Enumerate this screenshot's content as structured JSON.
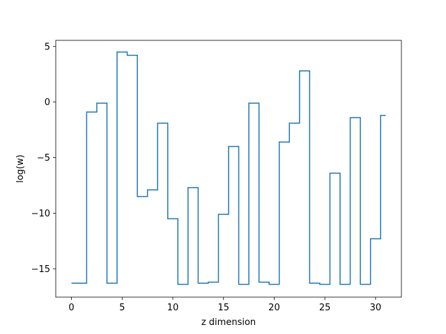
{
  "chart_data": {
    "type": "line",
    "drawstyle": "steps-mid",
    "title": "",
    "xlabel": "z dimension",
    "ylabel": "log(w)",
    "xlim": [
      -1.55,
      32.55
    ],
    "ylim": [
      -17.55,
      5.55
    ],
    "xticks": [
      0,
      5,
      10,
      15,
      20,
      25,
      30
    ],
    "xtick_labels": [
      "0",
      "5",
      "10",
      "15",
      "20",
      "25",
      "30"
    ],
    "yticks": [
      5,
      0,
      -5,
      -10,
      -15
    ],
    "ytick_labels": [
      "5",
      "0",
      "−5",
      "−10",
      "−15"
    ],
    "grid": false,
    "legend": "none",
    "line_color": "#1f77b4",
    "series": [
      {
        "x": [
          0,
          1,
          2,
          3,
          4,
          5,
          6,
          7,
          8,
          9,
          10,
          11,
          12,
          13,
          14,
          15,
          16,
          17,
          18,
          19,
          20,
          21,
          22,
          23,
          24,
          25,
          26,
          27,
          28,
          29,
          30,
          31
        ],
        "values": [
          -16.3,
          -16.3,
          -0.9,
          -0.1,
          -16.3,
          4.5,
          4.2,
          -8.5,
          -7.9,
          -1.9,
          -10.5,
          -16.4,
          -7.7,
          -16.3,
          -16.2,
          -10.1,
          -4.0,
          -16.4,
          -0.1,
          -16.2,
          -16.4,
          -3.6,
          -1.9,
          2.8,
          -16.3,
          -16.4,
          -6.4,
          -16.4,
          -1.4,
          -16.4,
          -12.3,
          -1.2
        ]
      }
    ]
  }
}
